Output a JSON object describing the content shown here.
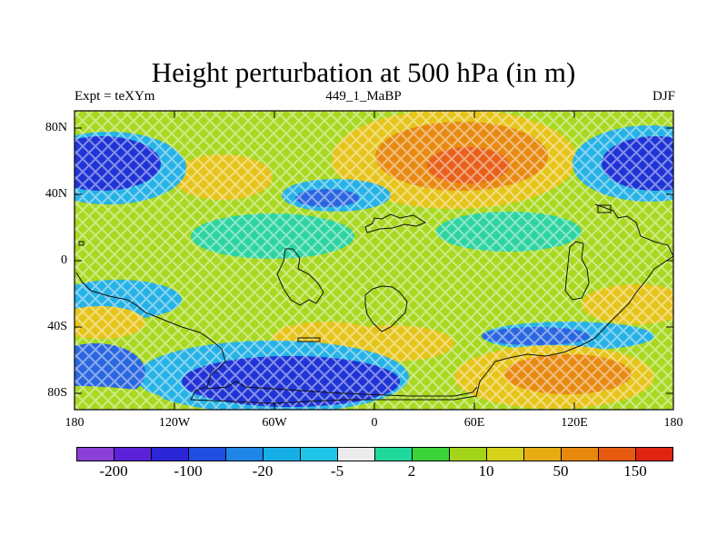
{
  "title": "Height perturbation at 500 hPa (in m)",
  "subtitle_left": "Expt = teXYm",
  "subtitle_center": "449_1_MaBP",
  "subtitle_right": "DJF",
  "y_ticks": [
    "80N",
    "40N",
    "0",
    "40S",
    "80S"
  ],
  "x_ticks": [
    "180",
    "120W",
    "60W",
    "0",
    "60E",
    "120E",
    "180"
  ],
  "colorbar": {
    "colors": [
      "#8a3fd6",
      "#5a22d8",
      "#2a26d6",
      "#1e4fe0",
      "#1f86e8",
      "#17aee6",
      "#1fc6e8",
      "#ececec",
      "#20d89a",
      "#3cd23a",
      "#a4d41a",
      "#d6d21a",
      "#e6ad12",
      "#e8880c",
      "#e65a10",
      "#e02412"
    ],
    "tick_labels": [
      "-200",
      "-100",
      "-20",
      "-5",
      "2",
      "10",
      "50",
      "150"
    ]
  },
  "field_colors": {
    "strong_neg": "#2034d6",
    "mod_neg": "#2a66e0",
    "weak_neg": "#26b2e6",
    "neutral": "#2ed4a0",
    "weak_pos": "#a8d820",
    "mod_pos": "#e6c41a",
    "strong_pos": "#e88a12",
    "max_pos": "#e8601a"
  }
}
